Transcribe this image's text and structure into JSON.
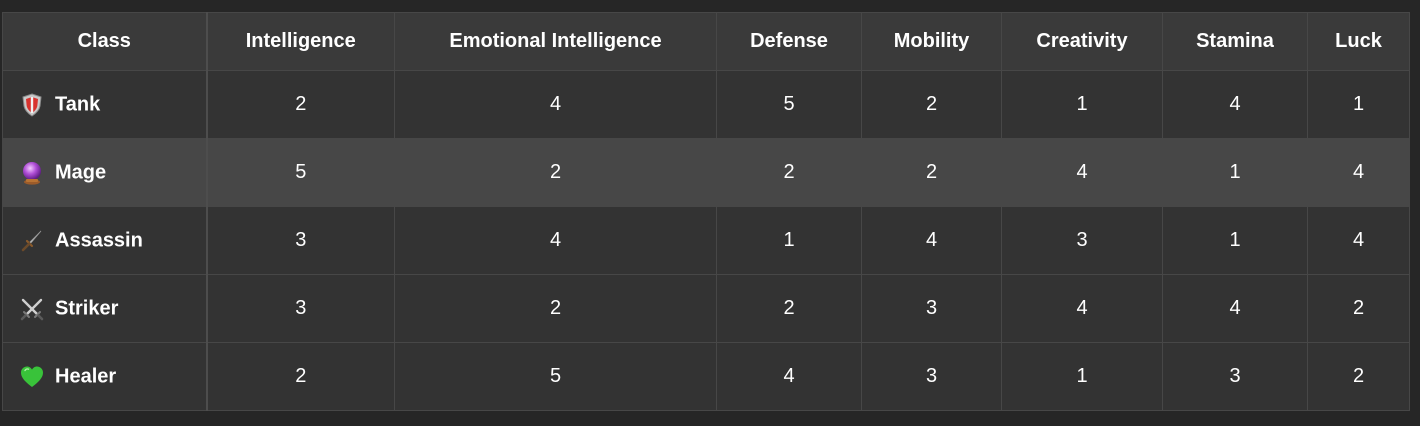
{
  "table": {
    "headers": [
      "Class",
      "Intelligence",
      "Emotional Intelligence",
      "Defense",
      "Mobility",
      "Creativity",
      "Stamina",
      "Luck"
    ],
    "rows": [
      {
        "icon": "shield-icon",
        "name": "Tank",
        "values": [
          "2",
          "4",
          "5",
          "2",
          "1",
          "4",
          "1"
        ]
      },
      {
        "icon": "crystal-ball-icon",
        "name": "Mage",
        "values": [
          "5",
          "2",
          "2",
          "2",
          "4",
          "1",
          "4"
        ]
      },
      {
        "icon": "dagger-icon",
        "name": "Assassin",
        "values": [
          "3",
          "4",
          "1",
          "4",
          "3",
          "1",
          "4"
        ]
      },
      {
        "icon": "crossed-swords-icon",
        "name": "Striker",
        "values": [
          "3",
          "2",
          "2",
          "3",
          "4",
          "4",
          "2"
        ]
      },
      {
        "icon": "green-heart-icon",
        "name": "Healer",
        "values": [
          "2",
          "5",
          "4",
          "3",
          "1",
          "3",
          "2"
        ]
      }
    ]
  }
}
